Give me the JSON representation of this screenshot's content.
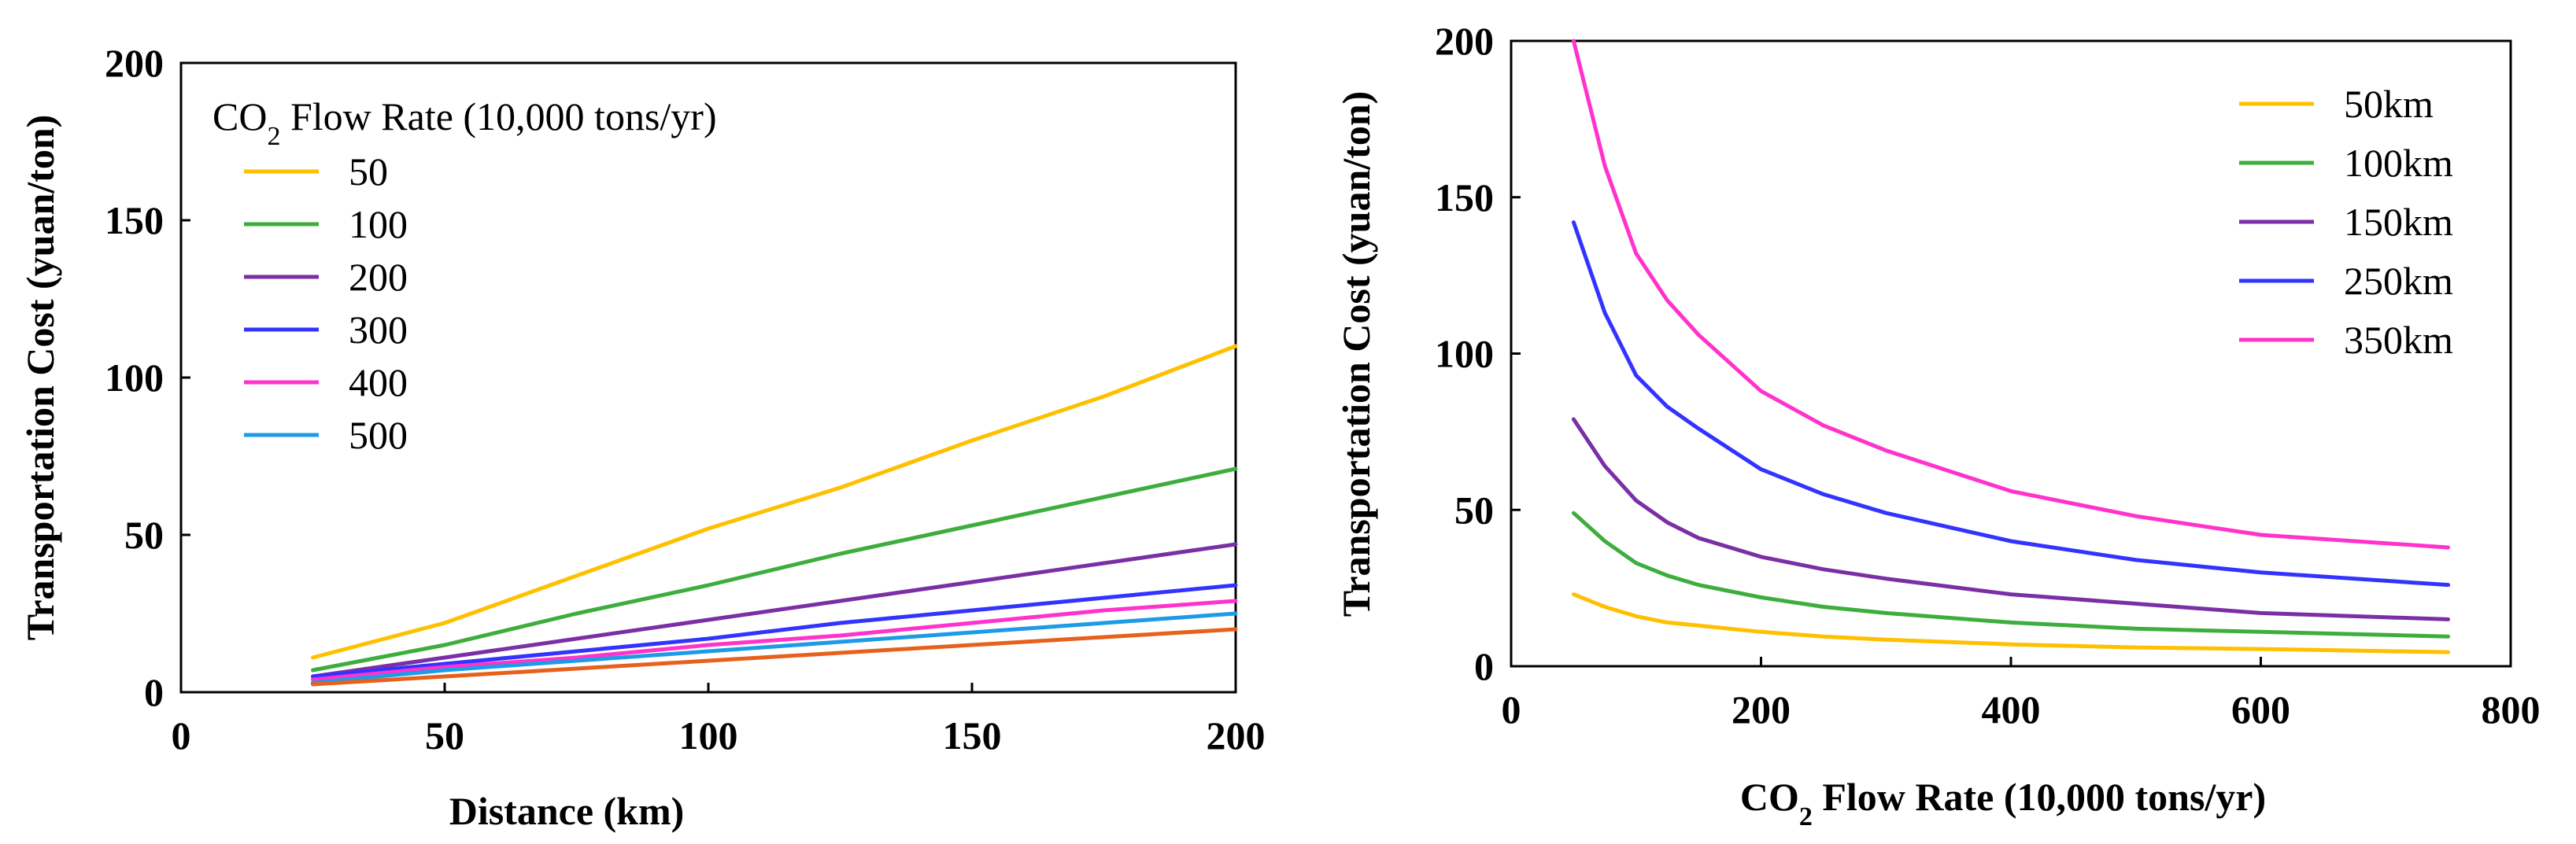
{
  "chart_data": [
    {
      "type": "line",
      "xlabel": "Distance (km)",
      "ylabel": "Transportation Cost (yuan/ton)",
      "xlim": [
        0,
        200
      ],
      "ylim": [
        0,
        200
      ],
      "xticks": [
        "0",
        "50",
        "100",
        "150",
        "200"
      ],
      "yticks": [
        "0",
        "50",
        "100",
        "150",
        "200"
      ],
      "legend_title": "CO2 Flow Rate (10,000 tons/yr)",
      "legend_title_parts": [
        "CO",
        "2",
        " Flow Rate (10,000 tons/yr)"
      ],
      "legend_position": "top-left",
      "x": [
        25,
        50,
        75,
        100,
        125,
        150,
        175,
        200
      ],
      "series": [
        {
          "name": "50",
          "color": "#FFC000",
          "values": [
            11,
            22,
            37,
            52,
            65,
            80,
            94,
            110
          ]
        },
        {
          "name": "100",
          "color": "#3DAE3D",
          "values": [
            7,
            15,
            25,
            34,
            44,
            53,
            62,
            71
          ]
        },
        {
          "name": "200",
          "color": "#7B2FA6",
          "values": [
            5,
            11,
            17,
            23,
            29,
            35,
            41,
            47
          ]
        },
        {
          "name": "300",
          "color": "#3333FF",
          "values": [
            5,
            9,
            13,
            17,
            22,
            26,
            30,
            34
          ]
        },
        {
          "name": "400",
          "color": "#FF33CC",
          "values": [
            4,
            8,
            11,
            15,
            18,
            22,
            26,
            29
          ]
        },
        {
          "name": "500",
          "color": "#1E9BE6",
          "values": [
            3,
            7,
            10,
            13,
            16,
            19,
            22,
            25
          ]
        },
        {
          "name": "",
          "color": "#E8601C",
          "values": [
            2.5,
            5,
            7.5,
            10,
            12.5,
            15,
            17.5,
            20
          ]
        }
      ]
    },
    {
      "type": "line",
      "xlabel": "CO2 Flow Rate (10,000 tons/yr)",
      "xlabel_parts": [
        "CO",
        "2",
        " Flow Rate (10,000 tons/yr)"
      ],
      "ylabel": "Transportation Cost (yuan/ton)",
      "xlim": [
        0,
        800
      ],
      "ylim": [
        0,
        200
      ],
      "xticks": [
        "0",
        "200",
        "400",
        "600",
        "800"
      ],
      "yticks": [
        "0",
        "50",
        "100",
        "150",
        "200"
      ],
      "legend_position": "top-right",
      "x": [
        50,
        75,
        100,
        125,
        150,
        200,
        250,
        300,
        400,
        500,
        600,
        750
      ],
      "series": [
        {
          "name": "50km",
          "color": "#FFC000",
          "values": [
            23,
            19,
            16,
            14,
            13,
            11,
            9.5,
            8.5,
            7,
            6,
            5.5,
            4.5
          ]
        },
        {
          "name": "100km",
          "color": "#3DAE3D",
          "values": [
            49,
            40,
            33,
            29,
            26,
            22,
            19,
            17,
            14,
            12,
            11,
            9.5
          ]
        },
        {
          "name": "150km",
          "color": "#7B2FA6",
          "values": [
            79,
            64,
            53,
            46,
            41,
            35,
            31,
            28,
            23,
            20,
            17,
            15
          ]
        },
        {
          "name": "250km",
          "color": "#3333FF",
          "values": [
            142,
            113,
            93,
            83,
            76,
            63,
            55,
            49,
            40,
            34,
            30,
            26
          ]
        },
        {
          "name": "350km",
          "color": "#FF33CC",
          "values": [
            200,
            160,
            132,
            117,
            106,
            88,
            77,
            69,
            56,
            48,
            42,
            38
          ]
        }
      ]
    }
  ]
}
